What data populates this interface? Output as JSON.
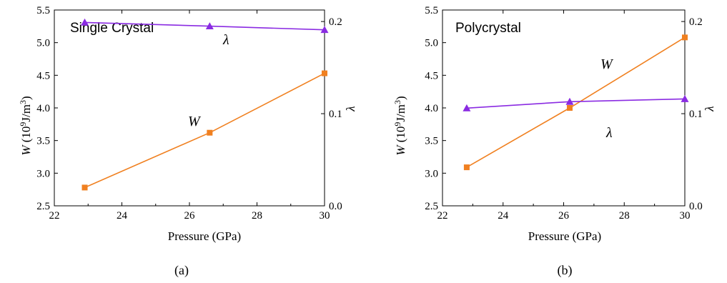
{
  "figure": {
    "panels": [
      {
        "caption": "(a)",
        "title": "Single Crystal",
        "xlabel": "Pressure (GPa)",
        "ylabel_left": {
          "var": "W",
          "rest": " (10",
          "exp1": "9",
          "mid": "J/m",
          "exp2": "3",
          "end": ")"
        },
        "ylabel_right": "λ",
        "w_label": "W",
        "lambda_label": "λ"
      },
      {
        "caption": "(b)",
        "title": "Polycrystal",
        "xlabel": "Pressure (GPa)",
        "ylabel_left": {
          "var": "W",
          "rest": " (10",
          "exp1": "9",
          "mid": "J/m",
          "exp2": "3",
          "end": ")"
        },
        "ylabel_right": "λ",
        "w_label": "W",
        "lambda_label": "λ"
      }
    ]
  },
  "chart_data": [
    {
      "type": "line",
      "title": "Single Crystal",
      "xlabel": "Pressure (GPa)",
      "ylabel": "W (10^9 J/m^3)",
      "y2label": "λ",
      "xlim": [
        22,
        30
      ],
      "ylim": [
        2.5,
        5.5
      ],
      "y2lim": [
        0.0,
        0.2125
      ],
      "xticks": [
        "22",
        "24",
        "26",
        "28",
        "30"
      ],
      "yticks": [
        "2.5",
        "3.0",
        "3.5",
        "4.0",
        "4.5",
        "5.0",
        "5.5"
      ],
      "y2ticks": [
        "0.0",
        "0.1",
        "0.2"
      ],
      "series": [
        {
          "name": "W",
          "axis": "left",
          "marker": "square",
          "color": "#f08020",
          "x": [
            22.9,
            26.6,
            30.0
          ],
          "y": [
            2.78,
            3.62,
            4.53
          ]
        },
        {
          "name": "λ",
          "axis": "right",
          "marker": "triangle",
          "color": "#8a2be2",
          "x": [
            22.9,
            26.6,
            30.0
          ],
          "y": [
            0.199,
            0.195,
            0.191
          ]
        }
      ]
    },
    {
      "type": "line",
      "title": "Polycrystal",
      "xlabel": "Pressure (GPa)",
      "ylabel": "W (10^9 J/m^3)",
      "y2label": "λ",
      "xlim": [
        22,
        30
      ],
      "ylim": [
        2.5,
        5.5
      ],
      "y2lim": [
        0.0,
        0.2125
      ],
      "xticks": [
        "22",
        "24",
        "26",
        "28",
        "30"
      ],
      "yticks": [
        "2.5",
        "3.0",
        "3.5",
        "4.0",
        "4.5",
        "5.0",
        "5.5"
      ],
      "y2ticks": [
        "0.0",
        "0.1",
        "0.2"
      ],
      "series": [
        {
          "name": "W",
          "axis": "left",
          "marker": "square",
          "color": "#f08020",
          "x": [
            22.8,
            26.2,
            30.0
          ],
          "y": [
            3.09,
            4.0,
            5.08
          ]
        },
        {
          "name": "λ",
          "axis": "right",
          "marker": "triangle",
          "color": "#8a2be2",
          "x": [
            22.8,
            26.2,
            30.0
          ],
          "y": [
            0.106,
            0.113,
            0.116
          ]
        }
      ]
    }
  ]
}
